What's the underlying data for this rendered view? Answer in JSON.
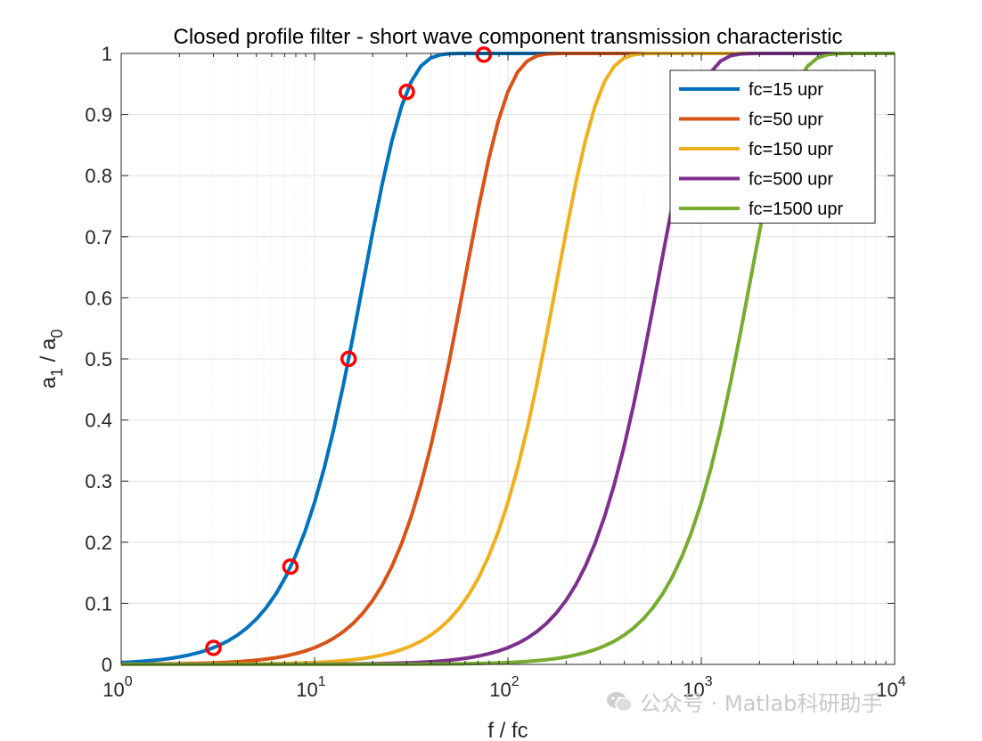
{
  "chart_data": {
    "type": "line",
    "title": "Closed profile filter - short wave component transmission characteristic",
    "xlabel": "f / fc",
    "ylabel": {
      "base": "a",
      "sub1": "1",
      "sep": " / ",
      "base2": "a",
      "sub2": "0"
    },
    "xscale": "log",
    "xlim": [
      1,
      10000
    ],
    "ylim": [
      0,
      1
    ],
    "xticks": [
      {
        "value": 1,
        "base": "10",
        "exp": "0"
      },
      {
        "value": 10,
        "base": "10",
        "exp": "1"
      },
      {
        "value": 100,
        "base": "10",
        "exp": "2"
      },
      {
        "value": 1000,
        "base": "10",
        "exp": "3"
      },
      {
        "value": 10000,
        "base": "10",
        "exp": "4"
      }
    ],
    "yticks": [
      "0",
      "0.1",
      "0.2",
      "0.3",
      "0.4",
      "0.5",
      "0.6",
      "0.7",
      "0.8",
      "0.9",
      "1"
    ],
    "grid": true,
    "legend_position": "top-right",
    "series": [
      {
        "name": "fc=15 upr",
        "fc": 15,
        "color": "#0072BD"
      },
      {
        "name": "fc=50 upr",
        "fc": 50,
        "color": "#D95319"
      },
      {
        "name": "fc=150 upr",
        "fc": 150,
        "color": "#EDB120"
      },
      {
        "name": "fc=500 upr",
        "fc": 500,
        "color": "#7E2F8E"
      },
      {
        "name": "fc=1500 upr",
        "fc": 1500,
        "color": "#77AC30"
      }
    ],
    "markers": {
      "color": "#FF0000",
      "points": [
        {
          "x": 3,
          "y": 0.027
        },
        {
          "x": 7.5,
          "y": 0.16
        },
        {
          "x": 15,
          "y": 0.5
        },
        {
          "x": 30,
          "y": 0.937
        },
        {
          "x": 75,
          "y": 0.998
        }
      ]
    }
  },
  "watermark": {
    "text": "公众号 · Matlab科研助手",
    "icon": "wechat-icon"
  }
}
